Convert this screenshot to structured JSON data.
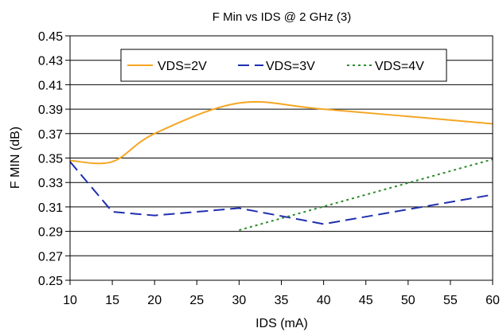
{
  "chart_data": {
    "type": "line",
    "title": "F Min vs IDS @ 2 GHz (3)",
    "xlabel": "IDS (mA)",
    "ylabel": "F MIN (dB)",
    "xlim": [
      10,
      60
    ],
    "ylim": [
      0.25,
      0.45
    ],
    "xticks": [
      10,
      15,
      20,
      25,
      30,
      35,
      40,
      45,
      50,
      55,
      60
    ],
    "yticks": [
      "0.25",
      "0.27",
      "0.29",
      "0.31",
      "0.33",
      "0.35",
      "0.37",
      "0.39",
      "0.41",
      "0.43",
      "0.45"
    ],
    "grid": "horizontal",
    "legend_position": "top",
    "series": [
      {
        "name": "VDS=2V",
        "color": "#F5A623",
        "dash": "solid",
        "smooth": true,
        "x": [
          10,
          15,
          20,
          30,
          40,
          60
        ],
        "y": [
          0.348,
          0.347,
          0.37,
          0.395,
          0.39,
          0.378
        ]
      },
      {
        "name": "VDS=3V",
        "color": "#1F2FB0",
        "dash": "dashed",
        "smooth": false,
        "x": [
          10,
          15,
          20,
          30,
          40,
          60
        ],
        "y": [
          0.347,
          0.306,
          0.303,
          0.309,
          0.296,
          0.32
        ]
      },
      {
        "name": "VDS=4V",
        "color": "#2E8B2E",
        "dash": "dotted",
        "smooth": false,
        "x": [
          30,
          60
        ],
        "y": [
          0.291,
          0.349
        ]
      }
    ]
  }
}
